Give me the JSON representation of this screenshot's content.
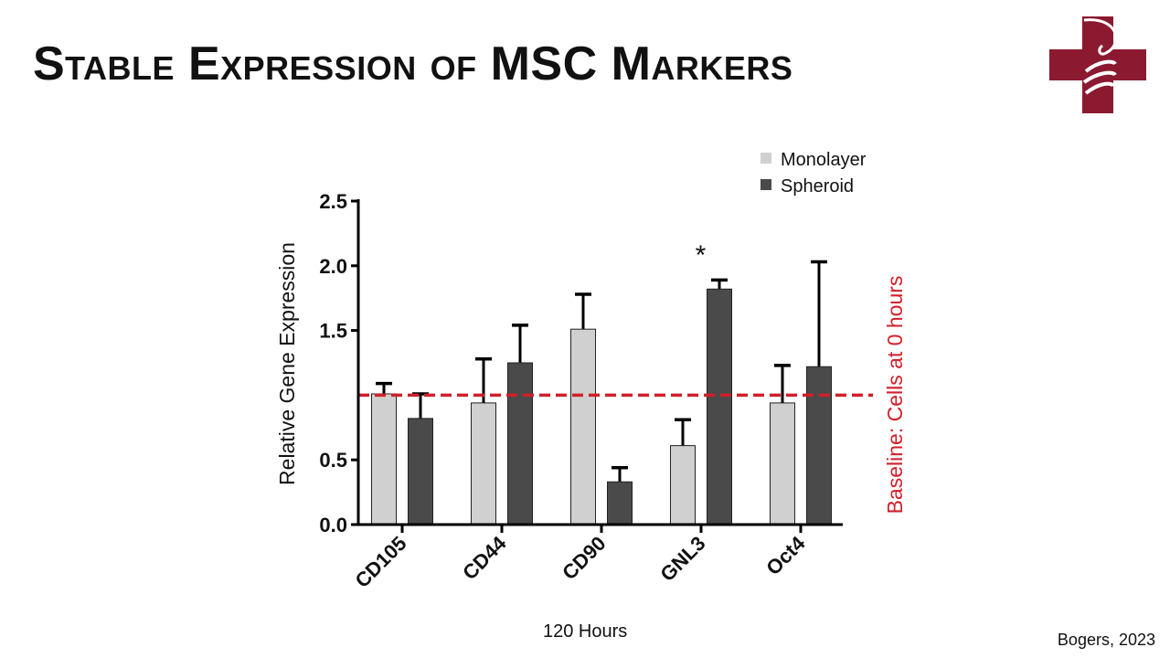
{
  "title": "Stable Expression of MSC Markers",
  "x_caption": "120 Hours",
  "credit": "Bogers, 2023",
  "logo": {
    "name": "cross-with-serpent-logo",
    "color": "#8b1a30"
  },
  "chart_data": {
    "type": "bar",
    "title": "",
    "xlabel": "",
    "ylabel": "Relative Gene Expression",
    "ylim": [
      0,
      2.5
    ],
    "yticks": [
      "0.0",
      "0.5",
      "1.5",
      "2.0",
      "2.5"
    ],
    "ytick_values": [
      0,
      0.5,
      1.5,
      2.0,
      2.5
    ],
    "categories": [
      "CD105",
      "CD44",
      "CD90",
      "GNL3",
      "Oct4"
    ],
    "series": [
      {
        "name": "Monolayer",
        "color": "#d0d0d0",
        "values": [
          1.01,
          0.94,
          1.51,
          0.61,
          0.94
        ],
        "error_upper": [
          1.09,
          1.28,
          1.78,
          0.81,
          1.23
        ]
      },
      {
        "name": "Spheroid",
        "color": "#4a4a4a",
        "values": [
          0.82,
          1.25,
          0.33,
          1.82,
          1.22
        ],
        "error_upper": [
          1.01,
          1.54,
          0.44,
          1.89,
          2.03
        ]
      }
    ],
    "baseline": {
      "value": 1.0,
      "label": "Baseline: Cells at 0 hours",
      "color": "#d0202a",
      "style": "dashed"
    },
    "annotations": [
      {
        "category": "GNL3",
        "text": "*"
      }
    ],
    "legend_placement": "top-right",
    "grid": false
  }
}
